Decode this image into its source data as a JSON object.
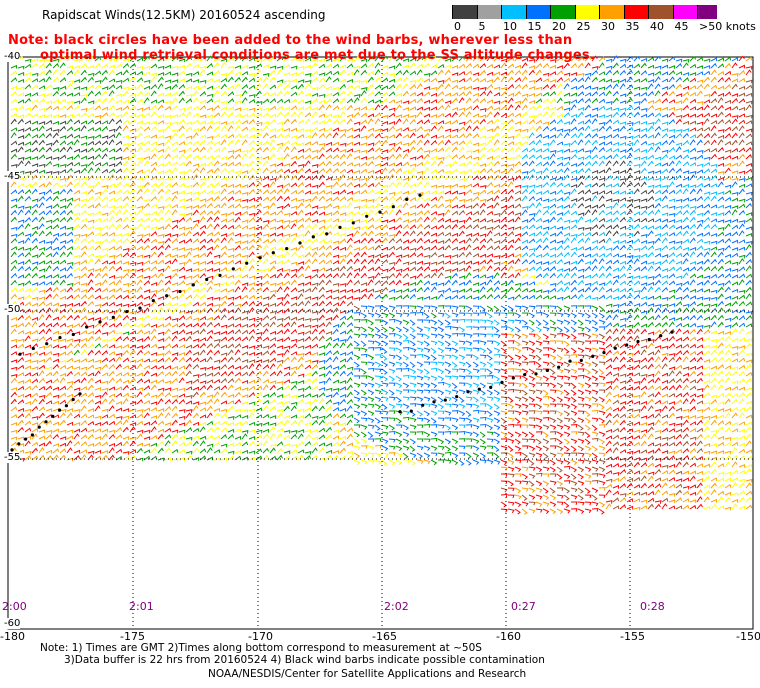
{
  "header": {
    "title": "Rapidscat Winds(12.5KM) 20160524 ascending",
    "note_line1": "Note: black circles have been added to the wind barbs, wherever less than",
    "note_line2": "optimal wind retrieval conditions are met due to the SS altitude changes."
  },
  "legend": {
    "labels": [
      "0",
      "5",
      "10",
      "15",
      "20",
      "25",
      "30",
      "35",
      "40",
      "45",
      ">50 knots"
    ],
    "colors": [
      "#404040",
      "#a0a0a0",
      "#00bfff",
      "#0070ff",
      "#00a000",
      "#ffff00",
      "#ffa000",
      "#ff0000",
      "#a0522d",
      "#ff00ff",
      "#800080"
    ]
  },
  "map": {
    "lon_ticks": [
      "-180",
      "-175",
      "-170",
      "-165",
      "-160",
      "-155",
      "-150"
    ],
    "lat_labels": [
      "-40",
      "-45",
      "-50",
      "-55",
      "-60"
    ],
    "time_labels": [
      "2:00",
      "2:01",
      "2:02",
      "0:27",
      "0:28"
    ],
    "wind_colors": {
      "calm": "#404040",
      "light": "#00bfff",
      "moderate": "#0070ff",
      "fresh": "#00a000",
      "strong": "#ffff00",
      "gale": "#ffa000",
      "storm": "#ff0000",
      "violent": "#a0522d"
    }
  },
  "footer": {
    "note1": "Note: 1) Times are GMT 2)Times along bottom correspond to measurement at ~50S",
    "note2": "3)Data buffer is 22 hrs from 20160524 4) Black wind barbs indicate possible contamination",
    "credit": "NOAA/NESDIS/Center for Satellite Applications and Research"
  }
}
